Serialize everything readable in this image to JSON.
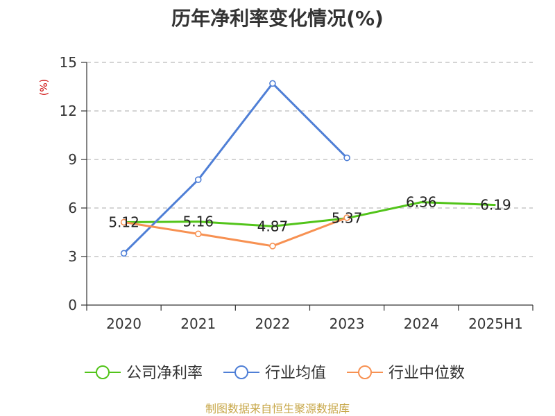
{
  "chart_data": {
    "type": "line",
    "title": "历年净利率变化情况(%)",
    "ylabel": "(%)",
    "xlabel": "",
    "categories": [
      "2020",
      "2021",
      "2022",
      "2023",
      "2024",
      "2025H1"
    ],
    "ylim": [
      0,
      15
    ],
    "yticks": [
      0,
      3,
      6,
      9,
      12,
      15
    ],
    "grid": true,
    "legend_position": "bottom",
    "series": [
      {
        "name": "公司净利率",
        "values": [
          5.12,
          5.16,
          4.87,
          5.37,
          6.36,
          6.19
        ],
        "labels": [
          "5.12",
          "5.16",
          "4.87",
          "5.37",
          "6.36",
          "6.19"
        ],
        "color": "#52c41a",
        "show_markers": false
      },
      {
        "name": "行业均值",
        "values": [
          3.2,
          7.75,
          13.7,
          9.1,
          null,
          null
        ],
        "color": "#4f7fd6",
        "show_markers": true
      },
      {
        "name": "行业中位数",
        "values": [
          5.12,
          4.4,
          3.65,
          5.4,
          null,
          null
        ],
        "color": "#f79152",
        "show_markers": true
      }
    ],
    "source": "制图数据来自恒生聚源数据库",
    "colors": {
      "axis": "#333333",
      "grid": "#bbbbbb",
      "ylabel": "#cc0000",
      "source": "#c8a84b"
    }
  }
}
